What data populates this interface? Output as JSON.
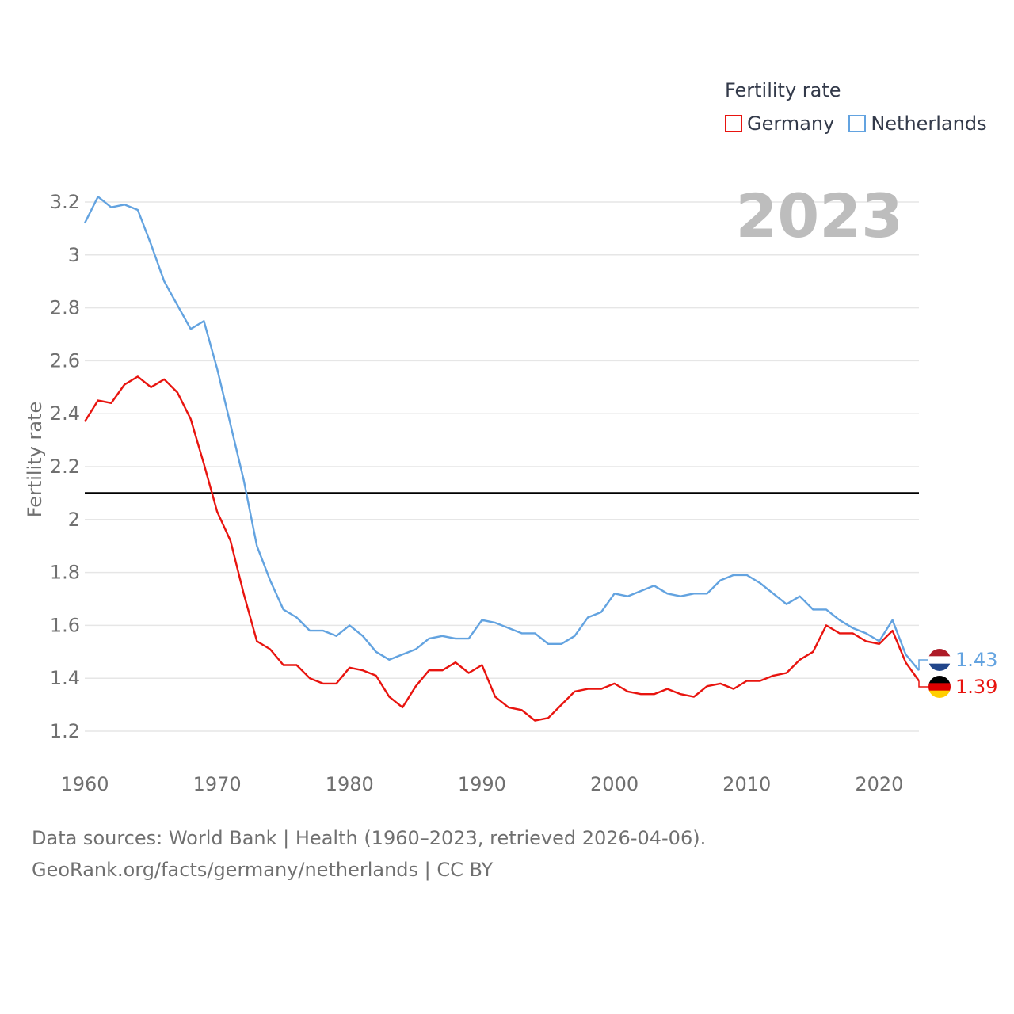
{
  "legend": {
    "title": "Fertility rate",
    "items": [
      {
        "name": "Germany",
        "color": "#e8140f"
      },
      {
        "name": "Netherlands",
        "color": "#63a3e0"
      }
    ]
  },
  "year_label": "2023",
  "source_line1": "Data sources: World Bank | Health (1960–2023, retrieved 2026-04-06).",
  "source_line2": "GeoRank.org/facts/germany/netherlands | CC BY",
  "chart_data": {
    "type": "line",
    "title": "Fertility rate",
    "xlabel": "",
    "ylabel": "Fertility rate",
    "xlim": [
      1960,
      2023
    ],
    "ylim": [
      1.1,
      3.25
    ],
    "xticks": [
      1960,
      1970,
      1980,
      1990,
      2000,
      2010,
      2020
    ],
    "yticks": [
      1.2,
      1.4,
      1.6,
      1.8,
      2,
      2.2,
      2.4,
      2.6,
      2.8,
      3,
      3.2
    ],
    "grid": true,
    "reference_line": 2.1,
    "x": [
      1960,
      1961,
      1962,
      1963,
      1964,
      1965,
      1966,
      1967,
      1968,
      1969,
      1970,
      1971,
      1972,
      1973,
      1974,
      1975,
      1976,
      1977,
      1978,
      1979,
      1980,
      1981,
      1982,
      1983,
      1984,
      1985,
      1986,
      1987,
      1988,
      1989,
      1990,
      1991,
      1992,
      1993,
      1994,
      1995,
      1996,
      1997,
      1998,
      1999,
      2000,
      2001,
      2002,
      2003,
      2004,
      2005,
      2006,
      2007,
      2008,
      2009,
      2010,
      2011,
      2012,
      2013,
      2014,
      2015,
      2016,
      2017,
      2018,
      2019,
      2020,
      2021,
      2022,
      2023
    ],
    "series": [
      {
        "name": "Germany",
        "color": "#e8140f",
        "end_label": "1.39",
        "values": [
          2.37,
          2.45,
          2.44,
          2.51,
          2.54,
          2.5,
          2.53,
          2.48,
          2.38,
          2.21,
          2.03,
          1.92,
          1.72,
          1.54,
          1.51,
          1.45,
          1.45,
          1.4,
          1.38,
          1.38,
          1.44,
          1.43,
          1.41,
          1.33,
          1.29,
          1.37,
          1.43,
          1.43,
          1.46,
          1.42,
          1.45,
          1.33,
          1.29,
          1.28,
          1.24,
          1.25,
          1.3,
          1.35,
          1.36,
          1.36,
          1.38,
          1.35,
          1.34,
          1.34,
          1.36,
          1.34,
          1.33,
          1.37,
          1.38,
          1.36,
          1.39,
          1.39,
          1.41,
          1.42,
          1.47,
          1.5,
          1.6,
          1.57,
          1.57,
          1.54,
          1.53,
          1.58,
          1.46,
          1.39
        ]
      },
      {
        "name": "Netherlands",
        "color": "#63a3e0",
        "end_label": "1.43",
        "values": [
          3.12,
          3.22,
          3.18,
          3.19,
          3.17,
          3.04,
          2.9,
          2.81,
          2.72,
          2.75,
          2.57,
          2.36,
          2.15,
          1.9,
          1.77,
          1.66,
          1.63,
          1.58,
          1.58,
          1.56,
          1.6,
          1.56,
          1.5,
          1.47,
          1.49,
          1.51,
          1.55,
          1.56,
          1.55,
          1.55,
          1.62,
          1.61,
          1.59,
          1.57,
          1.57,
          1.53,
          1.53,
          1.56,
          1.63,
          1.65,
          1.72,
          1.71,
          1.73,
          1.75,
          1.72,
          1.71,
          1.72,
          1.72,
          1.77,
          1.79,
          1.79,
          1.76,
          1.72,
          1.68,
          1.71,
          1.66,
          1.66,
          1.62,
          1.59,
          1.57,
          1.54,
          1.62,
          1.49,
          1.43
        ]
      }
    ]
  }
}
